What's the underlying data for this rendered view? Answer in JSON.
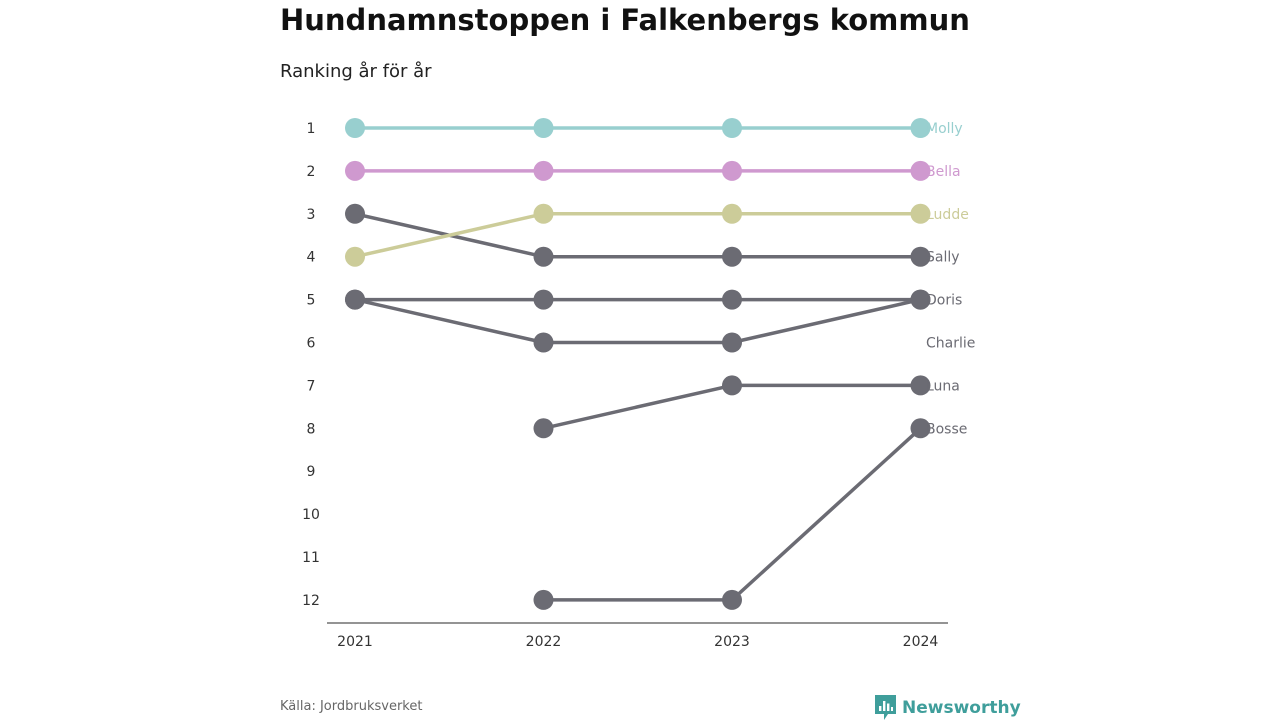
{
  "header": {
    "title": "Hundnamnstoppen i Falkenbergs kommun",
    "subtitle": "Ranking år för år"
  },
  "footer": {
    "source": "Källa: Jordbruksverket",
    "brand": "Newsworthy",
    "brand_icon": "newsworthy-logo-icon"
  },
  "colors": {
    "molly": "#98cfcf",
    "bella": "#cf99cf",
    "ludde": "#cccc99",
    "other": "#6b6b73",
    "axis": "#555555",
    "brand": "#3f9e9b"
  },
  "chart_data": {
    "type": "line",
    "title": "Hundnamnstoppen i Falkenbergs kommun",
    "subtitle": "Ranking år för år",
    "x": [
      "2021",
      "2022",
      "2023",
      "2024"
    ],
    "y_ticks": [
      "1",
      "2",
      "3",
      "4",
      "5",
      "6",
      "7",
      "8",
      "9",
      "10",
      "11",
      "12"
    ],
    "ylim": [
      1,
      12
    ],
    "y_inverted": true,
    "grid": false,
    "series": [
      {
        "name": "Molly",
        "values": [
          1,
          1,
          1,
          1
        ],
        "color": "#98cfcf"
      },
      {
        "name": "Bella",
        "values": [
          2,
          2,
          2,
          2
        ],
        "color": "#cf99cf"
      },
      {
        "name": "Ludde",
        "values": [
          4,
          3,
          3,
          3
        ],
        "color": "#cccc99"
      },
      {
        "name": "Sally",
        "values": [
          3,
          4,
          4,
          4
        ],
        "color": "#6b6b73"
      },
      {
        "name": "Doris",
        "values": [
          5,
          5,
          5,
          5
        ],
        "color": "#6b6b73"
      },
      {
        "name": "Charlie",
        "values": [
          5,
          6,
          6,
          5
        ],
        "color": "#6b6b73"
      },
      {
        "name": "Luna",
        "values": [
          null,
          8,
          7,
          7
        ],
        "color": "#6b6b73"
      },
      {
        "name": "Bosse",
        "values": [
          null,
          12,
          12,
          8
        ],
        "color": "#6b6b73"
      }
    ]
  }
}
